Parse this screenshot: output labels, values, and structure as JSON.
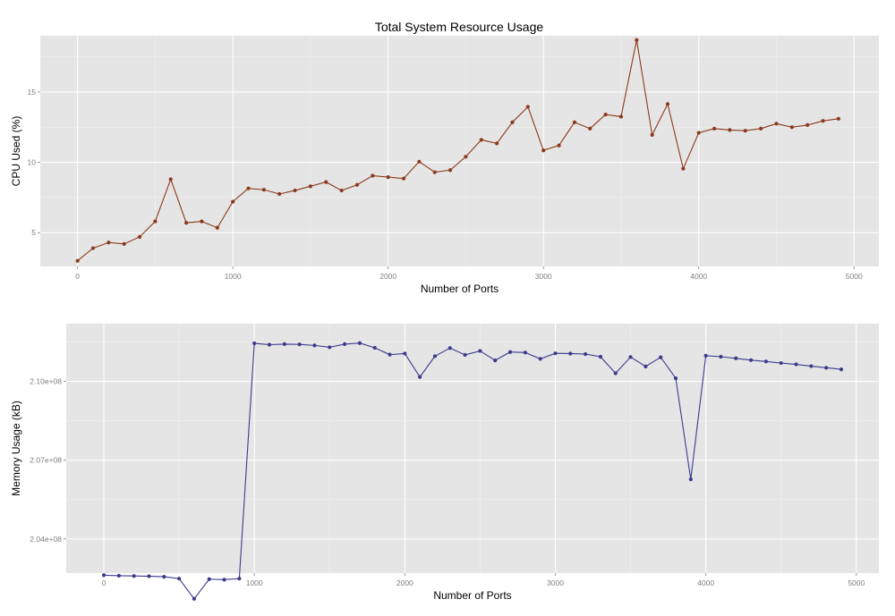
{
  "figure_title": "Total System Resource Usage",
  "chart_data": [
    {
      "type": "line",
      "title": "Total System Resource Usage",
      "xlabel": "Number of Ports",
      "ylabel": "CPU Used (%)",
      "xlim": [
        -240,
        5160
      ],
      "ylim": [
        2.6,
        19.0
      ],
      "x_ticks": [
        0,
        1000,
        2000,
        3000,
        4000,
        5000
      ],
      "y_ticks": [
        5,
        10,
        15
      ],
      "y_tick_labels": [
        "5",
        "10",
        "15"
      ],
      "grid": true,
      "color": "#8B3A1A",
      "x": [
        0,
        100,
        200,
        300,
        400,
        500,
        600,
        700,
        800,
        900,
        1000,
        1100,
        1200,
        1300,
        1400,
        1500,
        1600,
        1700,
        1800,
        1900,
        2000,
        2100,
        2200,
        2300,
        2400,
        2500,
        2600,
        2700,
        2800,
        2900,
        3000,
        3100,
        3200,
        3300,
        3400,
        3500,
        3600,
        3700,
        3800,
        3900,
        4000,
        4100,
        4200,
        4300,
        4400,
        4500,
        4600,
        4700,
        4800,
        4900
      ],
      "y": [
        3.0,
        3.9,
        4.3,
        4.2,
        4.7,
        5.8,
        8.8,
        5.7,
        5.8,
        5.35,
        7.2,
        8.15,
        8.05,
        7.75,
        8.0,
        8.3,
        8.6,
        8.0,
        8.4,
        9.05,
        8.95,
        8.85,
        10.05,
        9.3,
        9.45,
        10.4,
        11.6,
        11.35,
        12.85,
        13.95,
        10.85,
        11.2,
        12.85,
        12.4,
        13.4,
        13.25,
        18.7,
        11.95,
        14.15,
        9.55,
        12.1,
        12.4,
        12.3,
        12.25,
        12.4,
        12.75,
        12.5,
        12.65,
        12.95,
        13.1
      ]
    },
    {
      "type": "line",
      "title": "",
      "xlabel": "Number of Ports",
      "ylabel": "Memory Usage (kB)",
      "xlim": [
        -250,
        5150
      ],
      "ylim": [
        202700000,
        212200000
      ],
      "x_ticks": [
        0,
        1000,
        2000,
        3000,
        4000,
        5000
      ],
      "y_ticks": [
        204000000,
        207000000,
        210000000
      ],
      "y_tick_labels": [
        "2.04e+08",
        "2.07e+08",
        "2.10e+08"
      ],
      "grid": true,
      "color": "#3D3A8C",
      "x": [
        0,
        100,
        200,
        300,
        400,
        500,
        600,
        700,
        800,
        900,
        1000,
        1100,
        1200,
        1300,
        1400,
        1500,
        1600,
        1700,
        1800,
        1900,
        2000,
        2100,
        2200,
        2300,
        2400,
        2500,
        2600,
        2700,
        2800,
        2900,
        3000,
        3100,
        3200,
        3300,
        3400,
        3500,
        3600,
        3700,
        3800,
        3900,
        4000,
        4100,
        4200,
        4300,
        4400,
        4500,
        4600,
        4700,
        4800,
        4900
      ],
      "y": [
        202620000,
        202600000,
        202590000,
        202580000,
        202560000,
        202490000,
        201720000,
        202470000,
        202450000,
        202490000,
        211450000,
        211400000,
        211420000,
        211410000,
        211370000,
        211300000,
        211420000,
        211460000,
        211280000,
        211020000,
        211060000,
        210170000,
        210960000,
        211270000,
        211010000,
        211160000,
        210800000,
        211120000,
        211100000,
        210860000,
        211070000,
        211060000,
        211040000,
        210940000,
        210310000,
        210930000,
        210570000,
        210920000,
        210120000,
        206270000,
        210980000,
        210940000,
        210880000,
        210810000,
        210760000,
        210700000,
        210650000,
        210580000,
        210520000,
        210460000
      ]
    }
  ]
}
